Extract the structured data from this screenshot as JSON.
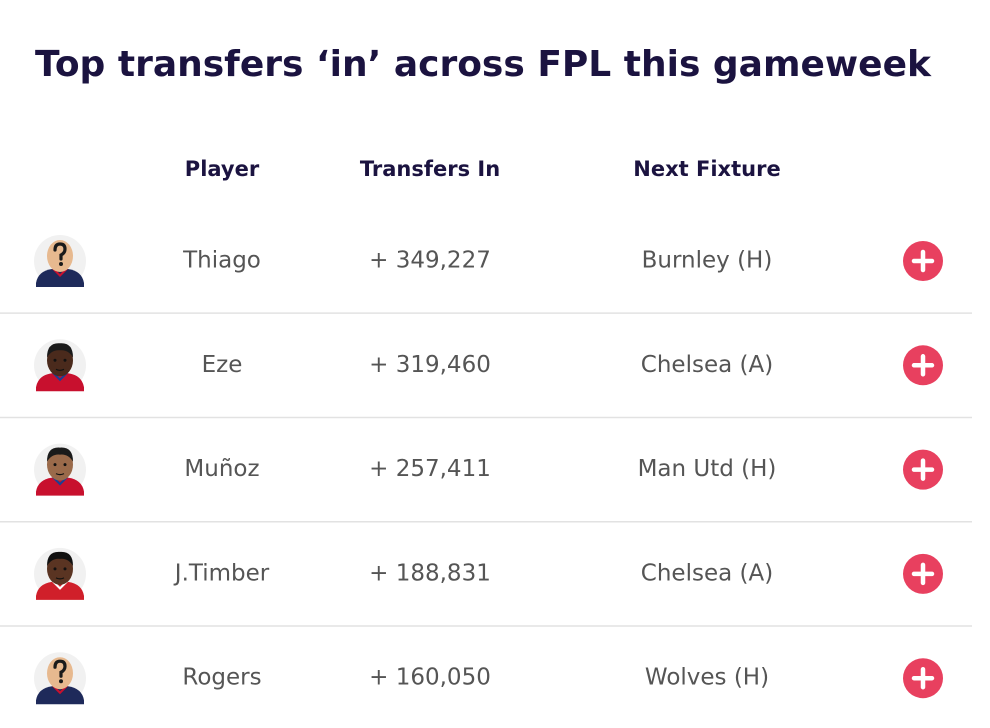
{
  "title": "Top transfers ‘in’ across FPL this gameweek",
  "table": {
    "columns": [
      "Player",
      "Transfers In",
      "Next Fixture"
    ],
    "rows": [
      [
        "Thiago",
        "+ 349,227",
        "Burnley (H)"
      ],
      [
        "Eze",
        "+ 319,460",
        "Chelsea (A)"
      ],
      [
        "Muñoz",
        "+ 257,411",
        "Man Utd (H)"
      ],
      [
        "J.Timber",
        "+ 188,831",
        "Chelsea (A)"
      ],
      [
        "Rogers",
        "+ 160,050",
        "Wolves (H)"
      ]
    ]
  }
}
